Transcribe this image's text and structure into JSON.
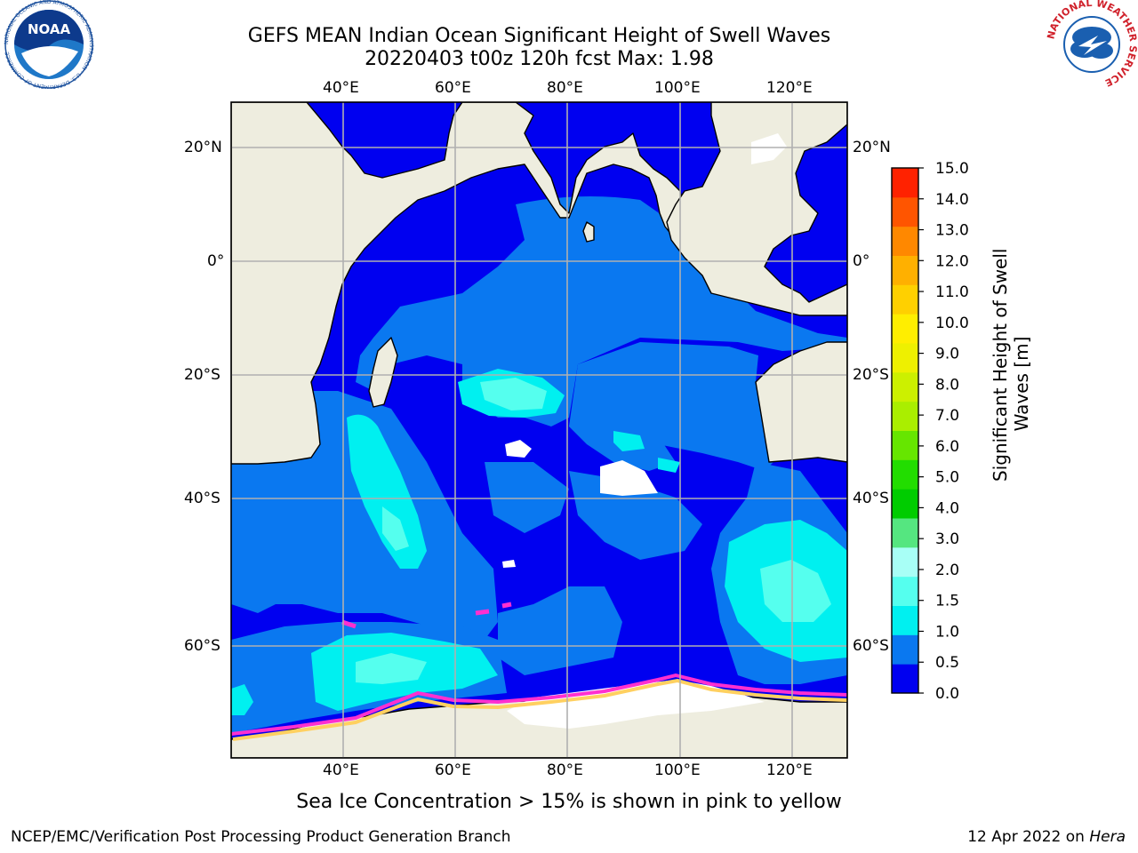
{
  "title": {
    "line1": "GEFS MEAN Indian Ocean Significant Height of Swell Waves",
    "line2": "20220403 t00z 120h fcst   Max: 1.98"
  },
  "map": {
    "lon_ticks": [
      "40°E",
      "60°E",
      "80°E",
      "100°E",
      "120°E"
    ],
    "lat_ticks": [
      "20°N",
      "0°",
      "20°S",
      "40°S",
      "60°S"
    ],
    "colors": {
      "ocean_0_05": "#0000f0",
      "ocean_05_10": "#0a78f0",
      "ocean_10_15": "#00f0f0",
      "ocean_15_20": "#55ffee",
      "land": "#eeeddf",
      "ice_pink": "#ff2fd0",
      "ice_yellow": "#ffd060"
    }
  },
  "colorbar": {
    "label": "Significant Height of Swell Waves [m]",
    "label_line1": "Significant Height of Swell",
    "label_line2": "Waves [m]",
    "ticks": [
      "0.0",
      "0.5",
      "1.0",
      "1.5",
      "2.0",
      "3.0",
      "4.0",
      "5.0",
      "6.0",
      "7.0",
      "8.0",
      "9.0",
      "10.0",
      "11.0",
      "12.0",
      "13.0",
      "14.0",
      "15.0"
    ],
    "colors": [
      "#0000f0",
      "#0a78f0",
      "#00f0f0",
      "#55ffee",
      "#a8fff6",
      "#55e680",
      "#00cc00",
      "#22dd00",
      "#66e600",
      "#aaee00",
      "#ccf000",
      "#eef000",
      "#ffee00",
      "#ffd000",
      "#ffb000",
      "#ff8800",
      "#ff5500",
      "#ff2200"
    ]
  },
  "ice_note": "Sea Ice Concentration > 15% is shown in pink to yellow",
  "footer": {
    "left": "NCEP/EMC/Verification Post Processing Product Generation Branch",
    "right_date": "12 Apr 2022 on ",
    "right_host": "Hera"
  },
  "logos": {
    "noaa_text": "NOAA",
    "noaa_ring": "NATIONAL OCEANIC AND ATMOSPHERIC ADMINISTRATION · U.S. DEPARTMENT OF COMMERCE",
    "nws_ring": "NATIONAL WEATHER SERVICE"
  }
}
